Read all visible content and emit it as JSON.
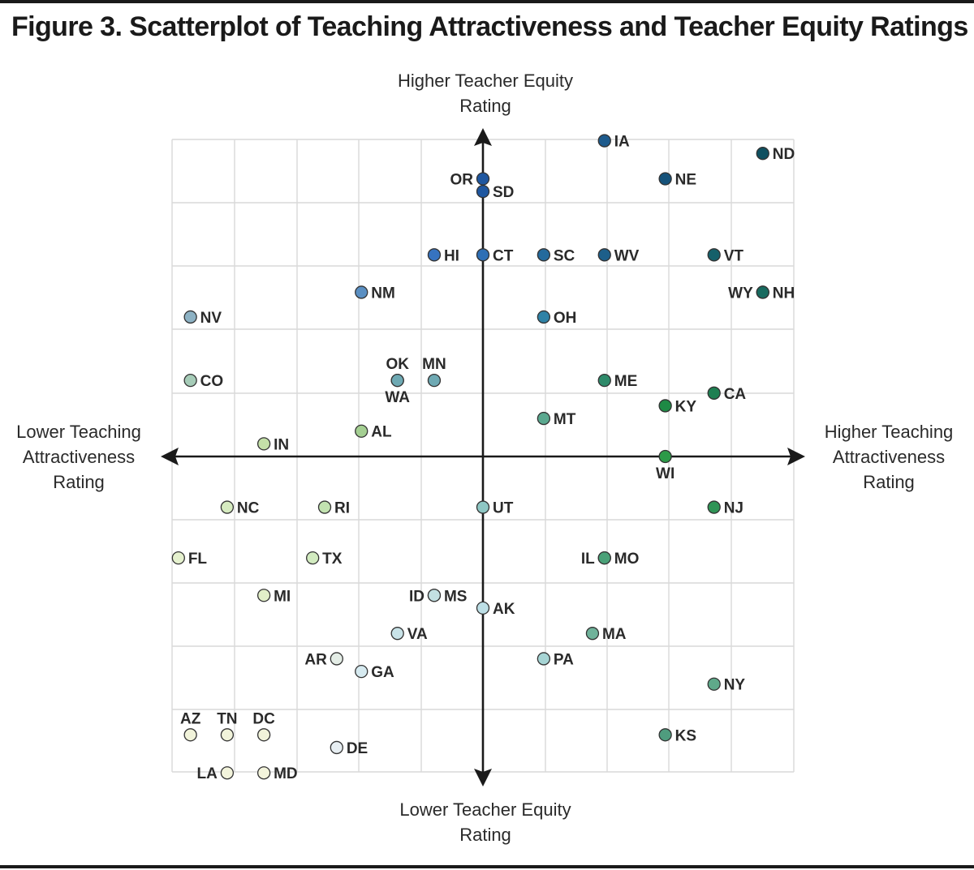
{
  "title": "Figure 3. Scatterplot of Teaching Attractiveness and Teacher Equity Ratings",
  "axis_labels": {
    "top": "Higher Teacher Equity Rating",
    "bottom": "Lower Teacher Equity Rating",
    "left": "Lower Teaching Attractiveness Rating",
    "right": "Higher Teaching Attractiveness Rating"
  },
  "chart_data": {
    "type": "scatter",
    "title": "Figure 3. Scatterplot of Teaching Attractiveness and Teacher Equity Ratings",
    "xlabel": "Teaching Attractiveness Rating",
    "ylabel": "Teacher Equity Rating",
    "xlim": [
      -5,
      5
    ],
    "ylim": [
      -5,
      5
    ],
    "grid": true,
    "tick_labels_shown": false,
    "color_scale": {
      "low": "#f3f4dc",
      "mid": "#8ec7c4",
      "high_equity": "#1f5fa8",
      "high_attractiveness": "#1f8a4a",
      "high_both": "#0e4f5c"
    },
    "points": [
      {
        "label": "IA",
        "x": 1.92,
        "y": 4.98,
        "color": "#1d5a8c"
      },
      {
        "label": "ND",
        "x": 4.42,
        "y": 4.78,
        "color": "#0f5060"
      },
      {
        "label": "NE",
        "x": 2.88,
        "y": 4.38,
        "color": "#15527a"
      },
      {
        "label": "OR",
        "x": 0.0,
        "y": 4.38,
        "color": "#1f57a0"
      },
      {
        "label": "SD",
        "x": 0.0,
        "y": 4.18,
        "color": "#1f57a0"
      },
      {
        "label": "HI",
        "x": -0.77,
        "y": 3.18,
        "color": "#3673c0"
      },
      {
        "label": "CT",
        "x": 0.0,
        "y": 3.18,
        "color": "#2e6fb5"
      },
      {
        "label": "SC",
        "x": 0.96,
        "y": 3.18,
        "color": "#246a9c"
      },
      {
        "label": "WV",
        "x": 1.92,
        "y": 3.18,
        "color": "#1d5f8a"
      },
      {
        "label": "VT",
        "x": 3.65,
        "y": 3.18,
        "color": "#15606a"
      },
      {
        "label": "NM",
        "x": -1.92,
        "y": 2.59,
        "color": "#5a8fc2"
      },
      {
        "label": "WY",
        "x": 4.42,
        "y": 2.59,
        "color": "#176a5f"
      },
      {
        "label": "NH",
        "x": 4.42,
        "y": 2.59,
        "color": "#176a5f"
      },
      {
        "label": "NV",
        "x": -4.62,
        "y": 2.2,
        "color": "#8db2c4"
      },
      {
        "label": "OH",
        "x": 0.96,
        "y": 2.2,
        "color": "#2f82a6"
      },
      {
        "label": "OK",
        "x": -1.35,
        "y": 1.2,
        "color": "#6ea9b3"
      },
      {
        "label": "WA",
        "x": -1.35,
        "y": 1.2,
        "color": "#6ea9b3"
      },
      {
        "label": "MN",
        "x": -0.77,
        "y": 1.2,
        "color": "#6ea9b3"
      },
      {
        "label": "CO",
        "x": -4.62,
        "y": 1.2,
        "color": "#a6ccb8"
      },
      {
        "label": "ME",
        "x": 1.92,
        "y": 1.2,
        "color": "#2e8a6a"
      },
      {
        "label": "CA",
        "x": 3.65,
        "y": 1.0,
        "color": "#1f7f52"
      },
      {
        "label": "KY",
        "x": 2.88,
        "y": 0.8,
        "color": "#1e8a45"
      },
      {
        "label": "MT",
        "x": 0.96,
        "y": 0.6,
        "color": "#5aa88f"
      },
      {
        "label": "AL",
        "x": -1.92,
        "y": 0.4,
        "color": "#a4cf92"
      },
      {
        "label": "IN",
        "x": -3.46,
        "y": 0.2,
        "color": "#c4e0a8"
      },
      {
        "label": "WI",
        "x": 2.88,
        "y": 0.0,
        "color": "#2c9a48"
      },
      {
        "label": "NC",
        "x": -4.04,
        "y": -0.8,
        "color": "#d6ebc0"
      },
      {
        "label": "RI",
        "x": -2.5,
        "y": -0.8,
        "color": "#c2e2b0"
      },
      {
        "label": "UT",
        "x": 0.0,
        "y": -0.8,
        "color": "#8ec7c4"
      },
      {
        "label": "NJ",
        "x": 3.65,
        "y": -0.8,
        "color": "#2f9456"
      },
      {
        "label": "FL",
        "x": -4.81,
        "y": -1.6,
        "color": "#e5f1ce"
      },
      {
        "label": "TX",
        "x": -2.69,
        "y": -1.6,
        "color": "#d2ebc0"
      },
      {
        "label": "IL",
        "x": 1.92,
        "y": -1.6,
        "color": "#4aa178"
      },
      {
        "label": "MO",
        "x": 1.92,
        "y": -1.6,
        "color": "#4aa178"
      },
      {
        "label": "MI",
        "x": -3.46,
        "y": -2.19,
        "color": "#e2efc8"
      },
      {
        "label": "ID",
        "x": -0.77,
        "y": -2.19,
        "color": "#c3e0e2"
      },
      {
        "label": "MS",
        "x": -0.77,
        "y": -2.19,
        "color": "#c3e0e2"
      },
      {
        "label": "AK",
        "x": 0.0,
        "y": -2.39,
        "color": "#bddfe6"
      },
      {
        "label": "VA",
        "x": -1.35,
        "y": -2.79,
        "color": "#c9e3e8"
      },
      {
        "label": "MA",
        "x": 1.73,
        "y": -2.79,
        "color": "#6fb29a"
      },
      {
        "label": "AR",
        "x": -2.31,
        "y": -3.19,
        "color": "#e4ede6"
      },
      {
        "label": "PA",
        "x": 0.96,
        "y": -3.19,
        "color": "#a6d4d4"
      },
      {
        "label": "GA",
        "x": -1.92,
        "y": -3.39,
        "color": "#d6eaf0"
      },
      {
        "label": "NY",
        "x": 3.65,
        "y": -3.59,
        "color": "#5fa98a"
      },
      {
        "label": "AZ",
        "x": -4.62,
        "y": -4.39,
        "color": "#f1f3da"
      },
      {
        "label": "TN",
        "x": -4.04,
        "y": -4.39,
        "color": "#f1f3da"
      },
      {
        "label": "DC",
        "x": -3.46,
        "y": -4.39,
        "color": "#f1f3da"
      },
      {
        "label": "KS",
        "x": 2.88,
        "y": -4.39,
        "color": "#4f9c7e"
      },
      {
        "label": "DE",
        "x": -2.31,
        "y": -4.59,
        "color": "#e7eef2"
      },
      {
        "label": "LA",
        "x": -4.04,
        "y": -4.99,
        "color": "#f3f4dc"
      },
      {
        "label": "MD",
        "x": -3.46,
        "y": -4.99,
        "color": "#f3f4dc"
      }
    ]
  }
}
